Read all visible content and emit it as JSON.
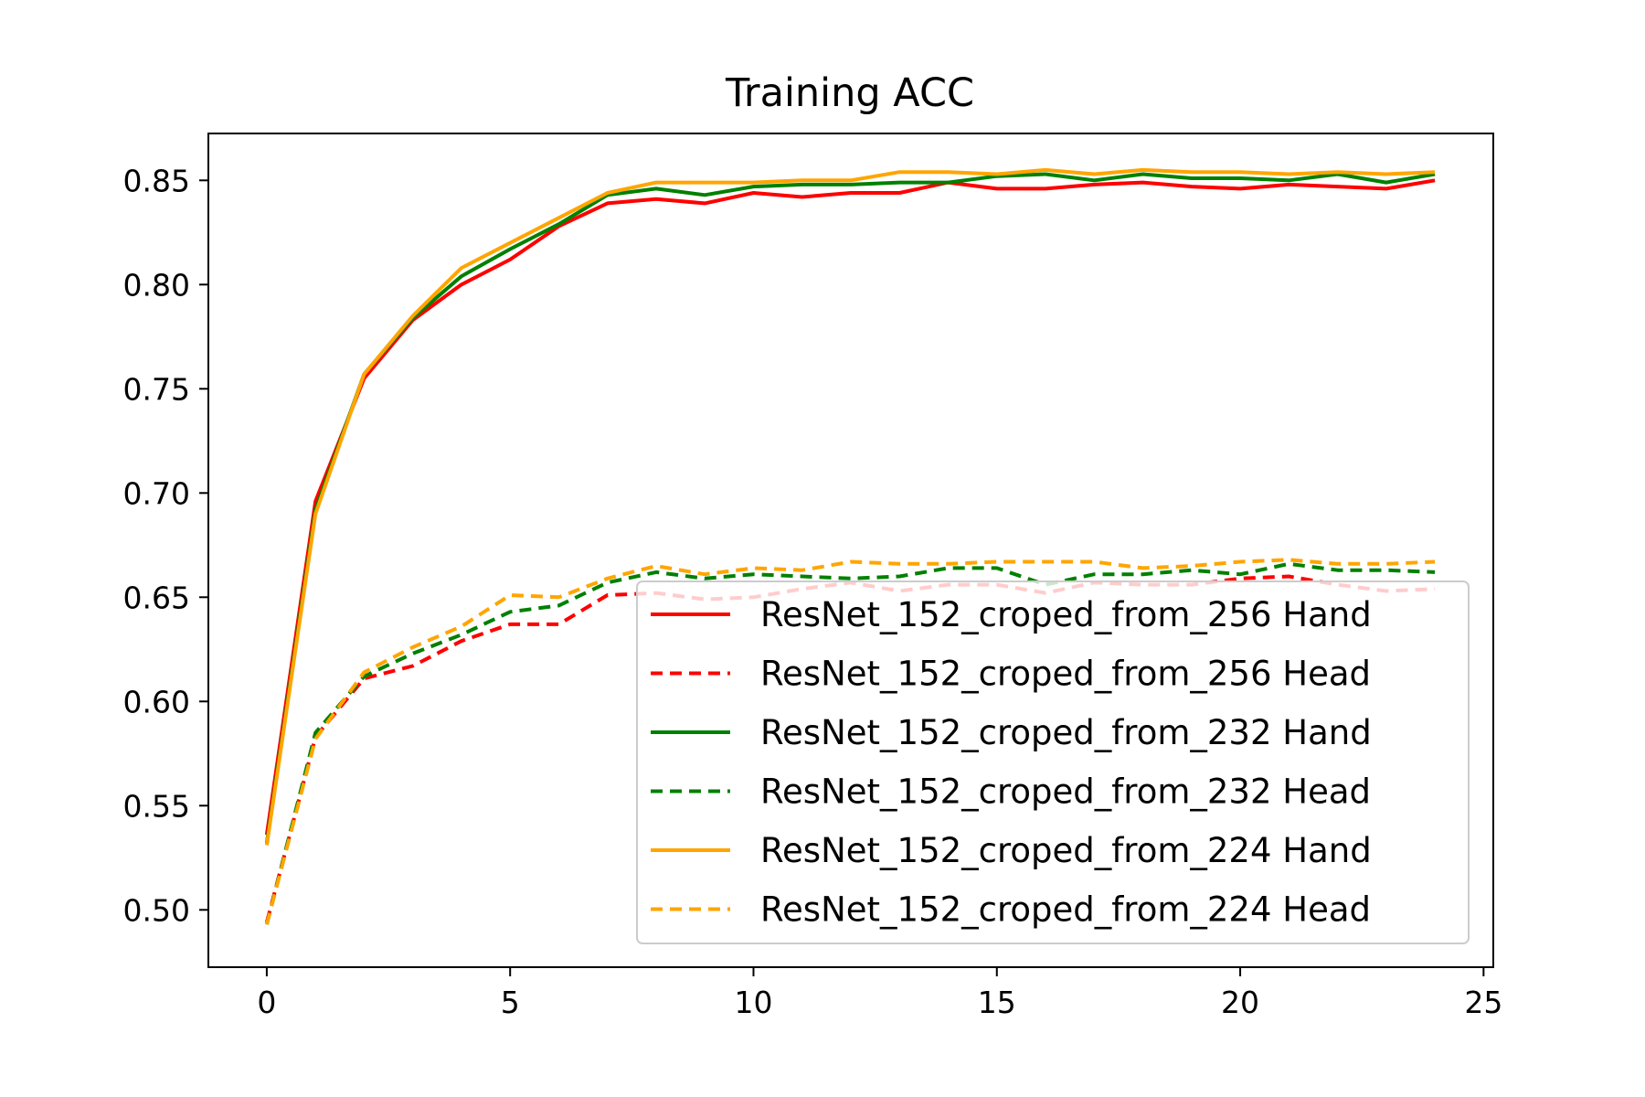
{
  "chart_data": {
    "type": "line",
    "title": "Training ACC",
    "xlabel": "",
    "ylabel": "",
    "xlim": [
      -1.2,
      25.2
    ],
    "ylim": [
      0.4725,
      0.8725
    ],
    "xticks": [
      0,
      5,
      10,
      15,
      20,
      25
    ],
    "yticks": [
      0.5,
      0.55,
      0.6,
      0.65,
      0.7,
      0.75,
      0.8,
      0.85
    ],
    "ytick_labels": [
      "0.50",
      "0.55",
      "0.60",
      "0.65",
      "0.70",
      "0.75",
      "0.80",
      "0.85"
    ],
    "grid": false,
    "legend_position": "lower-right",
    "x": [
      0,
      1,
      2,
      3,
      4,
      5,
      6,
      7,
      8,
      9,
      10,
      11,
      12,
      13,
      14,
      15,
      16,
      17,
      18,
      19,
      20,
      21,
      22,
      23,
      24
    ],
    "series": [
      {
        "name": "ResNet_152_croped_from_256 Hand",
        "color": "#ff0000",
        "dash": "solid",
        "values": [
          0.536,
          0.696,
          0.755,
          0.783,
          0.8,
          0.812,
          0.828,
          0.839,
          0.841,
          0.839,
          0.844,
          0.842,
          0.844,
          0.844,
          0.849,
          0.846,
          0.846,
          0.848,
          0.849,
          0.847,
          0.846,
          0.848,
          0.847,
          0.846,
          0.85
        ]
      },
      {
        "name": "ResNet_152_croped_from_256 Head",
        "color": "#ff0000",
        "dash": "dashed",
        "values": [
          0.494,
          0.583,
          0.611,
          0.617,
          0.629,
          0.637,
          0.637,
          0.651,
          0.652,
          0.649,
          0.65,
          0.654,
          0.657,
          0.653,
          0.656,
          0.656,
          0.652,
          0.657,
          0.656,
          0.656,
          0.659,
          0.66,
          0.656,
          0.653,
          0.654
        ]
      },
      {
        "name": "ResNet_152_croped_from_232 Hand",
        "color": "#008000",
        "dash": "solid",
        "values": [
          0.532,
          0.692,
          0.757,
          0.784,
          0.804,
          0.817,
          0.829,
          0.843,
          0.846,
          0.843,
          0.847,
          0.848,
          0.848,
          0.849,
          0.849,
          0.852,
          0.853,
          0.85,
          0.853,
          0.851,
          0.851,
          0.85,
          0.853,
          0.849,
          0.853
        ]
      },
      {
        "name": "ResNet_152_croped_from_232 Head",
        "color": "#008000",
        "dash": "dashed",
        "values": [
          0.493,
          0.585,
          0.612,
          0.623,
          0.632,
          0.643,
          0.646,
          0.657,
          0.662,
          0.659,
          0.661,
          0.66,
          0.659,
          0.66,
          0.664,
          0.664,
          0.656,
          0.661,
          0.661,
          0.663,
          0.661,
          0.666,
          0.663,
          0.663,
          0.662
        ]
      },
      {
        "name": "ResNet_152_croped_from_224 Hand",
        "color": "#ffa500",
        "dash": "solid",
        "values": [
          0.531,
          0.69,
          0.757,
          0.785,
          0.808,
          0.82,
          0.832,
          0.844,
          0.849,
          0.849,
          0.849,
          0.85,
          0.85,
          0.854,
          0.854,
          0.853,
          0.855,
          0.853,
          0.855,
          0.854,
          0.854,
          0.853,
          0.854,
          0.853,
          0.854
        ]
      },
      {
        "name": "ResNet_152_croped_from_224 Head",
        "color": "#ffa500",
        "dash": "dashed",
        "values": [
          0.493,
          0.582,
          0.614,
          0.626,
          0.636,
          0.651,
          0.65,
          0.659,
          0.665,
          0.661,
          0.664,
          0.663,
          0.667,
          0.666,
          0.666,
          0.667,
          0.667,
          0.667,
          0.664,
          0.665,
          0.667,
          0.668,
          0.666,
          0.666,
          0.667
        ]
      }
    ]
  }
}
